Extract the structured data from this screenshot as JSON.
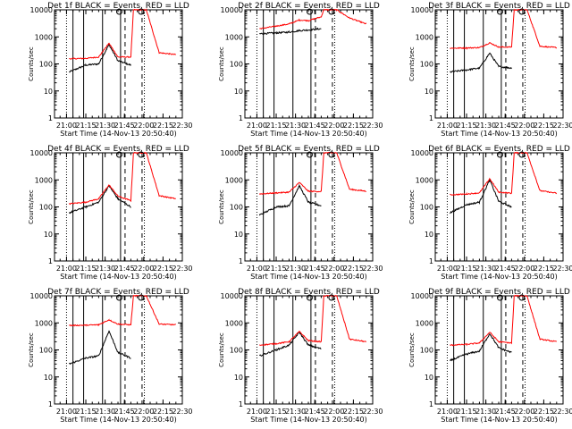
{
  "figure": {
    "xlabel": "Start Time (14-Nov-13 20:50:40)",
    "ylabel": "Counts/sec",
    "x_ticks": [
      "21:00",
      "21:15",
      "21:30",
      "21:45",
      "22:00",
      "22:15",
      "22:30"
    ],
    "y_ticks": [
      "1",
      "10",
      "100",
      "1000",
      "10000"
    ],
    "colors": {
      "events": "#000000",
      "lld": "#ff0000",
      "axes": "#000000",
      "background": "#ffffff"
    }
  },
  "chart_data": [
    {
      "type": "line",
      "title": "Det 1f BLACK = Events, RED = LLD",
      "xlabel": "Start Time (14-Nov-13 20:50:40)",
      "ylabel": "Counts/sec",
      "y_scale": "log",
      "ylim": [
        1,
        10000
      ],
      "xlim": [
        "20:50:40",
        "22:30"
      ],
      "x": [
        "21:02",
        "21:15",
        "21:25",
        "21:33",
        "21:40",
        "21:50",
        "21:52",
        "22:02",
        "22:12",
        "22:25"
      ],
      "series": [
        {
          "name": "BLACK = Events",
          "color": "#000000",
          "values": [
            50,
            90,
            100,
            520,
            130,
            90,
            null,
            null,
            null,
            null
          ]
        },
        {
          "name": "RED = LLD",
          "color": "#ff0000",
          "values": [
            155,
            160,
            180,
            580,
            180,
            180,
            10000,
            10000,
            260,
            220
          ]
        }
      ],
      "grid": false
    },
    {
      "type": "line",
      "title": "Det 2f BLACK = Events, RED = LLD",
      "xlabel": "Start Time (14-Nov-13 20:50:40)",
      "ylabel": "Counts/sec",
      "y_scale": "log",
      "ylim": [
        1,
        10000
      ],
      "xlim": [
        "20:50:40",
        "22:30"
      ],
      "x": [
        "21:02",
        "21:15",
        "21:25",
        "21:33",
        "21:40",
        "21:50",
        "21:52",
        "22:02",
        "22:12",
        "22:25"
      ],
      "series": [
        {
          "name": "BLACK = Events",
          "color": "#000000",
          "values": [
            1300,
            1400,
            1500,
            1700,
            1800,
            2000,
            null,
            null,
            null,
            null
          ]
        },
        {
          "name": "RED = LLD",
          "color": "#ff0000",
          "values": [
            2000,
            2500,
            3000,
            4200,
            4000,
            5500,
            10000,
            10000,
            5000,
            3000
          ]
        }
      ],
      "grid": false
    },
    {
      "type": "line",
      "title": "Det 3f BLACK = Events, RED = LLD",
      "xlabel": "Start Time (14-Nov-13 20:50:40)",
      "ylabel": "Counts/sec",
      "y_scale": "log",
      "ylim": [
        1,
        10000
      ],
      "xlim": [
        "20:50:40",
        "22:30"
      ],
      "x": [
        "21:02",
        "21:15",
        "21:25",
        "21:33",
        "21:40",
        "21:50",
        "21:52",
        "22:02",
        "22:12",
        "22:25"
      ],
      "series": [
        {
          "name": "BLACK = Events",
          "color": "#000000",
          "values": [
            50,
            60,
            70,
            250,
            80,
            70,
            null,
            null,
            null,
            null
          ]
        },
        {
          "name": "RED = LLD",
          "color": "#ff0000",
          "values": [
            380,
            390,
            400,
            600,
            420,
            420,
            10000,
            10000,
            450,
            400
          ]
        }
      ],
      "grid": false
    },
    {
      "type": "line",
      "title": "Det 4f BLACK = Events, RED = LLD",
      "xlabel": "Start Time (14-Nov-13 20:50:40)",
      "ylabel": "Counts/sec",
      "y_scale": "log",
      "ylim": [
        1,
        10000
      ],
      "xlim": [
        "20:50:40",
        "22:30"
      ],
      "x": [
        "21:02",
        "21:15",
        "21:25",
        "21:33",
        "21:40",
        "21:50",
        "21:52",
        "22:02",
        "22:12",
        "22:25"
      ],
      "series": [
        {
          "name": "BLACK = Events",
          "color": "#000000",
          "values": [
            60,
            100,
            150,
            600,
            200,
            100,
            null,
            null,
            null,
            null
          ]
        },
        {
          "name": "RED = LLD",
          "color": "#ff0000",
          "values": [
            130,
            150,
            200,
            650,
            250,
            170,
            10000,
            10000,
            260,
            200
          ]
        }
      ],
      "grid": false
    },
    {
      "type": "line",
      "title": "Det 5f BLACK = Events, RED = LLD",
      "xlabel": "Start Time (14-Nov-13 20:50:40)",
      "ylabel": "Counts/sec",
      "y_scale": "log",
      "ylim": [
        1,
        10000
      ],
      "xlim": [
        "20:50:40",
        "22:30"
      ],
      "x": [
        "21:02",
        "21:15",
        "21:25",
        "21:33",
        "21:40",
        "21:50",
        "21:52",
        "22:02",
        "22:12",
        "22:25"
      ],
      "series": [
        {
          "name": "BLACK = Events",
          "color": "#000000",
          "values": [
            50,
            100,
            110,
            600,
            150,
            110,
            null,
            null,
            null,
            null
          ]
        },
        {
          "name": "RED = LLD",
          "color": "#ff0000",
          "values": [
            300,
            330,
            350,
            800,
            380,
            370,
            10000,
            10000,
            450,
            380
          ]
        }
      ],
      "grid": false
    },
    {
      "type": "line",
      "title": "Det 6f BLACK = Events, RED = LLD",
      "xlabel": "Start Time (14-Nov-13 20:50:40)",
      "ylabel": "Counts/sec",
      "y_scale": "log",
      "ylim": [
        1,
        10000
      ],
      "xlim": [
        "20:50:40",
        "22:30"
      ],
      "x": [
        "21:02",
        "21:15",
        "21:25",
        "21:33",
        "21:40",
        "21:50",
        "21:52",
        "22:02",
        "22:12",
        "22:25"
      ],
      "series": [
        {
          "name": "BLACK = Events",
          "color": "#000000",
          "values": [
            60,
            120,
            150,
            1000,
            160,
            100,
            null,
            null,
            null,
            null
          ]
        },
        {
          "name": "RED = LLD",
          "color": "#ff0000",
          "values": [
            280,
            300,
            330,
            1100,
            350,
            320,
            10000,
            10000,
            400,
            320
          ]
        }
      ],
      "grid": false
    },
    {
      "type": "line",
      "title": "Det 7f BLACK = Events, RED = LLD",
      "xlabel": "Start Time (14-Nov-13 20:50:40)",
      "ylabel": "Counts/sec",
      "y_scale": "log",
      "ylim": [
        1,
        10000
      ],
      "xlim": [
        "20:50:40",
        "22:30"
      ],
      "x": [
        "21:02",
        "21:15",
        "21:25",
        "21:33",
        "21:40",
        "21:50",
        "21:52",
        "22:02",
        "22:12",
        "22:25"
      ],
      "series": [
        {
          "name": "BLACK = Events",
          "color": "#000000",
          "values": [
            30,
            50,
            60,
            500,
            80,
            50,
            null,
            null,
            null,
            null
          ]
        },
        {
          "name": "RED = LLD",
          "color": "#ff0000",
          "values": [
            800,
            820,
            850,
            1300,
            900,
            850,
            10000,
            10000,
            900,
            850
          ]
        }
      ],
      "grid": false
    },
    {
      "type": "line",
      "title": "Det 8f BLACK = Events, RED = LLD",
      "xlabel": "Start Time (14-Nov-13 20:50:40)",
      "ylabel": "Counts/sec",
      "y_scale": "log",
      "ylim": [
        1,
        10000
      ],
      "xlim": [
        "20:50:40",
        "22:30"
      ],
      "x": [
        "21:02",
        "21:15",
        "21:25",
        "21:33",
        "21:40",
        "21:50",
        "21:52",
        "22:02",
        "22:12",
        "22:25"
      ],
      "series": [
        {
          "name": "BLACK = Events",
          "color": "#000000",
          "values": [
            60,
            100,
            150,
            450,
            150,
            110,
            null,
            null,
            null,
            null
          ]
        },
        {
          "name": "RED = LLD",
          "color": "#ff0000",
          "values": [
            150,
            170,
            200,
            480,
            220,
            200,
            10000,
            10000,
            250,
            200
          ]
        }
      ],
      "grid": false
    },
    {
      "type": "line",
      "title": "Det 9f BLACK = Events, RED = LLD",
      "xlabel": "Start Time (14-Nov-13 20:50:40)",
      "ylabel": "Counts/sec",
      "y_scale": "log",
      "ylim": [
        1,
        10000
      ],
      "xlim": [
        "20:50:40",
        "22:30"
      ],
      "x": [
        "21:02",
        "21:15",
        "21:25",
        "21:33",
        "21:40",
        "21:50",
        "21:52",
        "22:02",
        "22:12",
        "22:25"
      ],
      "series": [
        {
          "name": "BLACK = Events",
          "color": "#000000",
          "values": [
            40,
            70,
            90,
            400,
            120,
            80,
            null,
            null,
            null,
            null
          ]
        },
        {
          "name": "RED = LLD",
          "color": "#ff0000",
          "values": [
            150,
            160,
            180,
            450,
            200,
            180,
            10000,
            10000,
            250,
            200
          ]
        }
      ],
      "grid": false
    }
  ]
}
